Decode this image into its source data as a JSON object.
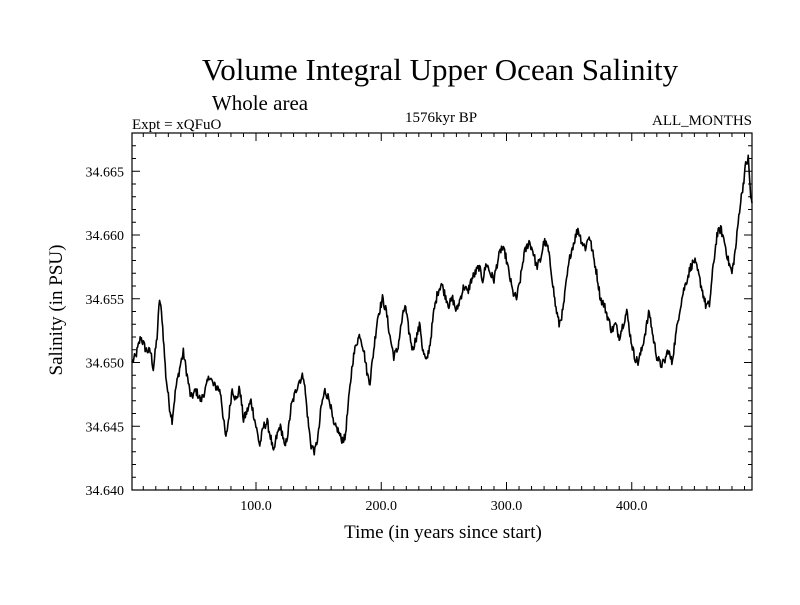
{
  "chart_data": {
    "type": "line",
    "title": "Volume Integral Upper Ocean Salinity",
    "subtitle": "Whole area",
    "experiment": "Expt = xQFuO",
    "period": "1576kyr BP",
    "months": "ALL_MONTHS",
    "xlabel": "Time (in years since start)",
    "ylabel": "Salinity (in PSU)",
    "xlim": [
      1,
      496
    ],
    "ylim": [
      34.64,
      34.668
    ],
    "x_ticks": [
      100,
      200,
      300,
      400
    ],
    "x_tick_labels": [
      "100.0",
      "200.0",
      "300.0",
      "400.0"
    ],
    "y_ticks": [
      34.64,
      34.645,
      34.65,
      34.655,
      34.66,
      34.665
    ],
    "y_tick_labels": [
      "34.640",
      "34.645",
      "34.650",
      "34.655",
      "34.660",
      "34.665"
    ],
    "series": [
      {
        "name": "salinity",
        "keypoints": [
          [
            1,
            34.65
          ],
          [
            4,
            34.6505
          ],
          [
            8,
            34.652
          ],
          [
            12,
            34.651
          ],
          [
            16,
            34.6508
          ],
          [
            18,
            34.6495
          ],
          [
            21,
            34.652
          ],
          [
            23,
            34.655
          ],
          [
            25,
            34.6535
          ],
          [
            28,
            34.649
          ],
          [
            31,
            34.6465
          ],
          [
            33,
            34.6455
          ],
          [
            36,
            34.648
          ],
          [
            40,
            34.65
          ],
          [
            42,
            34.6508
          ],
          [
            45,
            34.649
          ],
          [
            48,
            34.6472
          ],
          [
            52,
            34.6478
          ],
          [
            56,
            34.647
          ],
          [
            60,
            34.648
          ],
          [
            63,
            34.649
          ],
          [
            66,
            34.6482
          ],
          [
            70,
            34.648
          ],
          [
            72,
            34.6475
          ],
          [
            74,
            34.6455
          ],
          [
            76,
            34.644
          ],
          [
            78,
            34.6455
          ],
          [
            81,
            34.648
          ],
          [
            84,
            34.647
          ],
          [
            87,
            34.648
          ],
          [
            90,
            34.6455
          ],
          [
            93,
            34.6462
          ],
          [
            96,
            34.647
          ],
          [
            100,
            34.645
          ],
          [
            103,
            34.6435
          ],
          [
            106,
            34.645
          ],
          [
            109,
            34.6453
          ],
          [
            112,
            34.644
          ],
          [
            114,
            34.6428
          ],
          [
            116,
            34.644
          ],
          [
            119,
            34.645
          ],
          [
            121,
            34.6445
          ],
          [
            123,
            34.6432
          ],
          [
            126,
            34.6448
          ],
          [
            128,
            34.6465
          ],
          [
            131,
            34.6475
          ],
          [
            134,
            34.6485
          ],
          [
            138,
            34.649
          ],
          [
            140,
            34.647
          ],
          [
            142,
            34.645
          ],
          [
            144,
            34.6435
          ],
          [
            147,
            34.643
          ],
          [
            150,
            34.6445
          ],
          [
            152,
            34.6465
          ],
          [
            155,
            34.6478
          ],
          [
            159,
            34.647
          ],
          [
            162,
            34.645
          ],
          [
            165,
            34.6448
          ],
          [
            168,
            34.644
          ],
          [
            171,
            34.644
          ],
          [
            174,
            34.647
          ],
          [
            177,
            34.65
          ],
          [
            180,
            34.6515
          ],
          [
            183,
            34.6522
          ],
          [
            186,
            34.651
          ],
          [
            189,
            34.649
          ],
          [
            191,
            34.6485
          ],
          [
            194,
            34.651
          ],
          [
            197,
            34.6535
          ],
          [
            201,
            34.655
          ],
          [
            204,
            34.654
          ],
          [
            207,
            34.652
          ],
          [
            210,
            34.6505
          ],
          [
            213,
            34.651
          ],
          [
            216,
            34.653
          ],
          [
            219,
            34.6545
          ],
          [
            222,
            34.6525
          ],
          [
            225,
            34.651
          ],
          [
            228,
            34.652
          ],
          [
            231,
            34.653
          ],
          [
            233,
            34.651
          ],
          [
            236,
            34.65
          ],
          [
            239,
            34.6515
          ],
          [
            242,
            34.654
          ],
          [
            245,
            34.6555
          ],
          [
            248,
            34.6562
          ],
          [
            251,
            34.6553
          ],
          [
            254,
            34.6545
          ],
          [
            257,
            34.655
          ],
          [
            260,
            34.654
          ],
          [
            263,
            34.655
          ],
          [
            266,
            34.656
          ],
          [
            269,
            34.6555
          ],
          [
            272,
            34.6565
          ],
          [
            275,
            34.657
          ],
          [
            278,
            34.6575
          ],
          [
            281,
            34.6565
          ],
          [
            284,
            34.6578
          ],
          [
            287,
            34.657
          ],
          [
            290,
            34.6565
          ],
          [
            293,
            34.658
          ],
          [
            296,
            34.659
          ],
          [
            299,
            34.6585
          ],
          [
            302,
            34.657
          ],
          [
            305,
            34.6555
          ],
          [
            308,
            34.655
          ],
          [
            311,
            34.6565
          ],
          [
            314,
            34.6585
          ],
          [
            318,
            34.6595
          ],
          [
            321,
            34.6588
          ],
          [
            324,
            34.6575
          ],
          [
            327,
            34.658
          ],
          [
            330,
            34.6595
          ],
          [
            333,
            34.659
          ],
          [
            336,
            34.657
          ],
          [
            339,
            34.6545
          ],
          [
            342,
            34.653
          ],
          [
            345,
            34.654
          ],
          [
            348,
            34.6565
          ],
          [
            351,
            34.6585
          ],
          [
            354,
            34.6595
          ],
          [
            357,
            34.6605
          ],
          [
            360,
            34.6595
          ],
          [
            363,
            34.659
          ],
          [
            366,
            34.66
          ],
          [
            369,
            34.6585
          ],
          [
            372,
            34.657
          ],
          [
            375,
            34.655
          ],
          [
            378,
            34.6545
          ],
          [
            381,
            34.6535
          ],
          [
            384,
            34.6525
          ],
          [
            387,
            34.653
          ],
          [
            390,
            34.652
          ],
          [
            393,
            34.653
          ],
          [
            396,
            34.654
          ],
          [
            399,
            34.652
          ],
          [
            402,
            34.6505
          ],
          [
            405,
            34.65
          ],
          [
            408,
            34.651
          ],
          [
            411,
            34.6525
          ],
          [
            414,
            34.654
          ],
          [
            417,
            34.652
          ],
          [
            420,
            34.6505
          ],
          [
            423,
            34.6498
          ],
          [
            426,
            34.65
          ],
          [
            429,
            34.651
          ],
          [
            432,
            34.65
          ],
          [
            435,
            34.652
          ],
          [
            438,
            34.654
          ],
          [
            441,
            34.6555
          ],
          [
            444,
            34.6565
          ],
          [
            447,
            34.6575
          ],
          [
            450,
            34.658
          ],
          [
            453,
            34.657
          ],
          [
            456,
            34.6558
          ],
          [
            459,
            34.6545
          ],
          [
            462,
            34.6545
          ],
          [
            465,
            34.6575
          ],
          [
            468,
            34.66
          ],
          [
            471,
            34.6605
          ],
          [
            474,
            34.6595
          ],
          [
            477,
            34.658
          ],
          [
            480,
            34.657
          ],
          [
            483,
            34.659
          ],
          [
            486,
            34.662
          ],
          [
            489,
            34.664
          ],
          [
            491,
            34.6655
          ],
          [
            493,
            34.666
          ],
          [
            495,
            34.663
          ],
          [
            496,
            34.6625
          ]
        ]
      }
    ]
  }
}
